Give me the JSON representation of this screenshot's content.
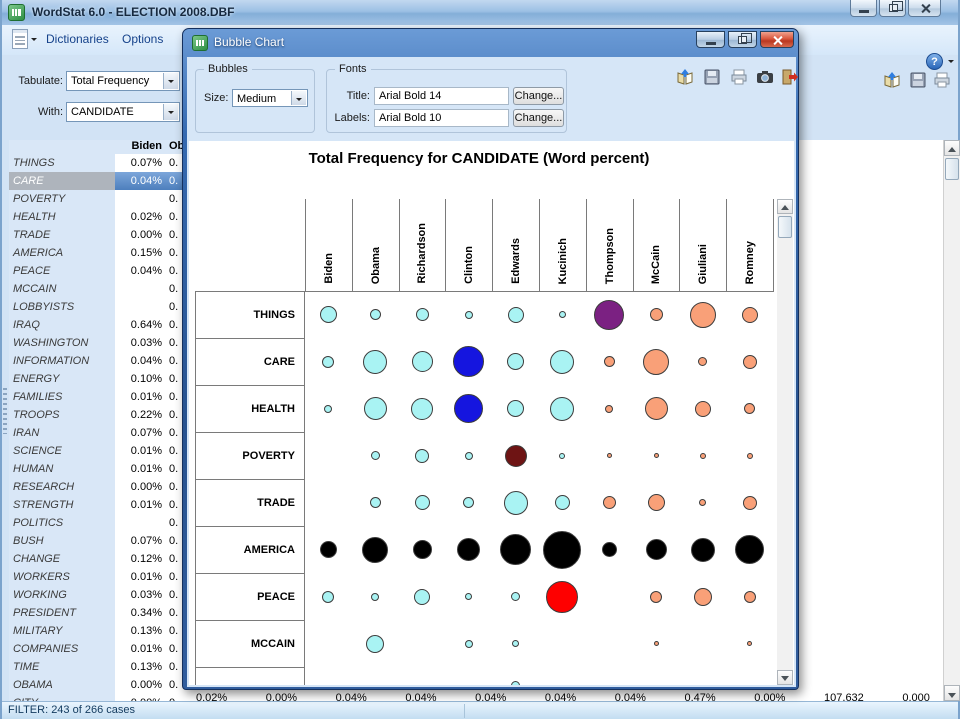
{
  "window": {
    "title": "WordStat 6.0 - ELECTION 2008.DBF",
    "menus": [
      "Dictionaries",
      "Options"
    ],
    "help_glyph": "?",
    "tabulate_label": "Tabulate:",
    "tabulate_value": "Total Frequency",
    "with_label": "With:",
    "with_value": "CANDIDATE",
    "toolbar_icons": [
      "report-book-icon",
      "save-icon",
      "print-icon"
    ],
    "status": "FILTER: 243 of 266 cases"
  },
  "table": {
    "columns": [
      "Biden",
      "Ob"
    ],
    "col2_partial": "0.",
    "rows": [
      {
        "word": "THINGS",
        "value": "0.07%",
        "selected": false
      },
      {
        "word": "CARE",
        "value": "0.04%",
        "selected": true
      },
      {
        "word": "POVERTY",
        "value": "",
        "selected": false
      },
      {
        "word": "HEALTH",
        "value": "0.02%",
        "selected": false
      },
      {
        "word": "TRADE",
        "value": "0.00%",
        "selected": false
      },
      {
        "word": "AMERICA",
        "value": "0.15%",
        "selected": false
      },
      {
        "word": "PEACE",
        "value": "0.04%",
        "selected": false
      },
      {
        "word": "MCCAIN",
        "value": "",
        "selected": false
      },
      {
        "word": "LOBBYISTS",
        "value": "",
        "selected": false
      },
      {
        "word": "IRAQ",
        "value": "0.64%",
        "selected": false
      },
      {
        "word": "WASHINGTON",
        "value": "0.03%",
        "selected": false
      },
      {
        "word": "INFORMATION",
        "value": "0.04%",
        "selected": false
      },
      {
        "word": "ENERGY",
        "value": "0.10%",
        "selected": false
      },
      {
        "word": "FAMILIES",
        "value": "0.01%",
        "selected": false
      },
      {
        "word": "TROOPS",
        "value": "0.22%",
        "selected": false
      },
      {
        "word": "IRAN",
        "value": "0.07%",
        "selected": false
      },
      {
        "word": "SCIENCE",
        "value": "0.01%",
        "selected": false
      },
      {
        "word": "HUMAN",
        "value": "0.01%",
        "selected": false
      },
      {
        "word": "RESEARCH",
        "value": "0.00%",
        "selected": false
      },
      {
        "word": "STRENGTH",
        "value": "0.01%",
        "selected": false
      },
      {
        "word": "POLITICS",
        "value": "",
        "selected": false
      },
      {
        "word": "BUSH",
        "value": "0.07%",
        "selected": false
      },
      {
        "word": "CHANGE",
        "value": "0.12%",
        "selected": false
      },
      {
        "word": "WORKERS",
        "value": "0.01%",
        "selected": false
      },
      {
        "word": "WORKING",
        "value": "0.03%",
        "selected": false
      },
      {
        "word": "PRESIDENT",
        "value": "0.34%",
        "selected": false
      },
      {
        "word": "MILITARY",
        "value": "0.13%",
        "selected": false
      },
      {
        "word": "COMPANIES",
        "value": "0.01%",
        "selected": false
      },
      {
        "word": "TIME",
        "value": "0.13%",
        "selected": false
      },
      {
        "word": "OBAMA",
        "value": "0.00%",
        "selected": false
      }
    ],
    "partial_row": {
      "word": "CITY",
      "value": "0.00%",
      "rest": [
        "0.02%",
        "0.00%",
        "0.04%",
        "0.04%",
        "0.04%",
        "0.04%",
        "0.04%",
        "0.47%",
        "0.00%",
        "107,632",
        "0.000"
      ]
    }
  },
  "dialog": {
    "title": "Bubble Chart",
    "bubbles_group": "Bubbles",
    "size_label": "Size:",
    "size_value": "Medium",
    "fonts_group": "Fonts",
    "title_label": "Title:",
    "title_value": "Arial Bold 14",
    "labels_label": "Labels:",
    "labels_value": "Arial Bold 10",
    "change_label": "Change...",
    "toolbar_icons": [
      "report-book-icon",
      "save-icon",
      "print-icon",
      "camera-icon",
      "exit-icon"
    ]
  },
  "chart_data": {
    "type": "scatter",
    "subtype": "bubble-matrix",
    "title": "Total Frequency for CANDIDATE (Word percent)",
    "legend_position": "none",
    "grid": "header-and-row-boxes-only",
    "columns": [
      "Biden",
      "Obama",
      "Richardson",
      "Clinton",
      "Edwards",
      "Kucinich",
      "Thompson",
      "McCain",
      "Giuliani",
      "Romney"
    ],
    "rows": [
      "THINGS",
      "CARE",
      "HEALTH",
      "POVERTY",
      "TRADE",
      "AMERICA",
      "PEACE",
      "MCCAIN"
    ],
    "palette": {
      "cyan": "#A9F3F3",
      "salmon": "#F9A078",
      "blue": "#1515DF",
      "purple": "#7B2182",
      "darkred": "#6E1414",
      "red": "#FE0000",
      "black": "#000000"
    },
    "bubbles": [
      [
        [
          17,
          "cyan"
        ],
        [
          11,
          "cyan"
        ],
        [
          13,
          "cyan"
        ],
        [
          8,
          "cyan"
        ],
        [
          16,
          "cyan"
        ],
        [
          7,
          "cyan"
        ],
        [
          30,
          "purple"
        ],
        [
          13,
          "salmon"
        ],
        [
          26,
          "salmon"
        ],
        [
          16,
          "salmon"
        ]
      ],
      [
        [
          12,
          "cyan"
        ],
        [
          24,
          "cyan"
        ],
        [
          21,
          "cyan"
        ],
        [
          31,
          "blue"
        ],
        [
          17,
          "cyan"
        ],
        [
          24,
          "cyan"
        ],
        [
          11,
          "salmon"
        ],
        [
          26,
          "salmon"
        ],
        [
          9,
          "salmon"
        ],
        [
          14,
          "salmon"
        ]
      ],
      [
        [
          8,
          "cyan"
        ],
        [
          23,
          "cyan"
        ],
        [
          22,
          "cyan"
        ],
        [
          29,
          "blue"
        ],
        [
          17,
          "cyan"
        ],
        [
          24,
          "cyan"
        ],
        [
          8,
          "salmon"
        ],
        [
          23,
          "salmon"
        ],
        [
          16,
          "salmon"
        ],
        [
          11,
          "salmon"
        ]
      ],
      [
        null,
        [
          9,
          "cyan"
        ],
        [
          14,
          "cyan"
        ],
        [
          8,
          "cyan"
        ],
        [
          22,
          "darkred"
        ],
        [
          6,
          "cyan"
        ],
        [
          5,
          "salmon"
        ],
        [
          5,
          "salmon"
        ],
        [
          6,
          "salmon"
        ],
        [
          6,
          "salmon"
        ]
      ],
      [
        null,
        [
          11,
          "cyan"
        ],
        [
          15,
          "cyan"
        ],
        [
          11,
          "cyan"
        ],
        [
          24,
          "cyan"
        ],
        [
          15,
          "cyan"
        ],
        [
          13,
          "salmon"
        ],
        [
          17,
          "salmon"
        ],
        [
          7,
          "salmon"
        ],
        [
          14,
          "salmon"
        ]
      ],
      [
        [
          17,
          "black"
        ],
        [
          26,
          "black"
        ],
        [
          19,
          "black"
        ],
        [
          23,
          "black"
        ],
        [
          31,
          "black"
        ],
        [
          38,
          "black"
        ],
        [
          15,
          "black"
        ],
        [
          21,
          "black"
        ],
        [
          24,
          "black"
        ],
        [
          29,
          "black"
        ]
      ],
      [
        [
          12,
          "cyan"
        ],
        [
          8,
          "cyan"
        ],
        [
          16,
          "cyan"
        ],
        [
          7,
          "cyan"
        ],
        [
          9,
          "cyan"
        ],
        [
          32,
          "red"
        ],
        null,
        [
          12,
          "salmon"
        ],
        [
          18,
          "salmon"
        ],
        [
          12,
          "salmon"
        ]
      ],
      [
        null,
        [
          18,
          "cyan"
        ],
        null,
        [
          8,
          "cyan"
        ],
        [
          7,
          "cyan"
        ],
        null,
        null,
        [
          5,
          "salmon"
        ],
        null,
        [
          5,
          "salmon"
        ]
      ]
    ],
    "partial_next_row_bubble": {
      "column": "Edwards",
      "d": 9,
      "c": "cyan"
    }
  }
}
